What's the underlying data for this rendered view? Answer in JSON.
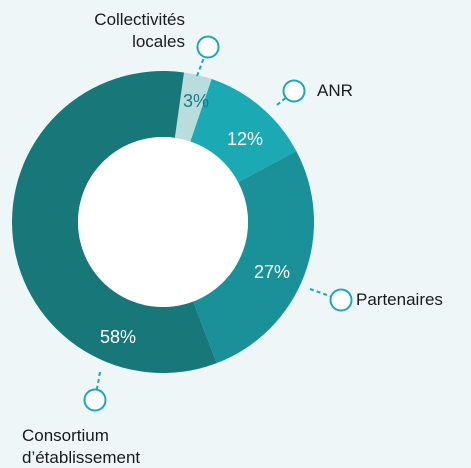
{
  "chart_data": {
    "type": "donut",
    "categories": [
      "Collectivités locales",
      "ANR",
      "Partenaires",
      "Consortium d’établissement"
    ],
    "values": [
      3,
      12,
      27,
      58
    ],
    "value_labels": [
      "3%",
      "12%",
      "27%",
      "58%"
    ],
    "colors": [
      "#b9dcdd",
      "#1ba9b4",
      "#1a9099",
      "#177779"
    ]
  }
}
